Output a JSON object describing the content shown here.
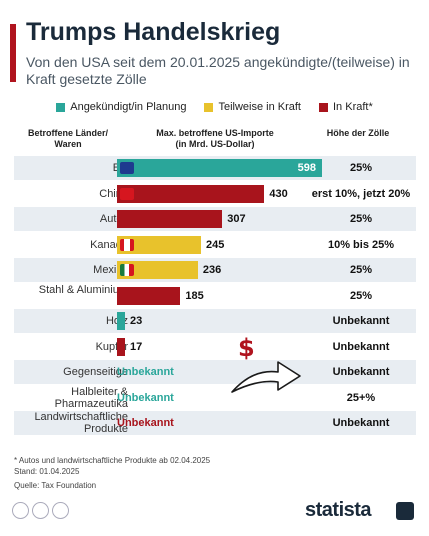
{
  "title": "Trumps Handelskrieg",
  "subtitle": "Von den USA seit dem 20.01.2025 angekündigte/(teilweise) in Kraft gesetzte Zölle",
  "legend": [
    {
      "label": "Angekündigt/in Planung",
      "color": "#2aa69a"
    },
    {
      "label": "Teilweise in Kraft",
      "color": "#e8c22c"
    },
    {
      "label": "In Kraft*",
      "color": "#a8141c"
    }
  ],
  "columns": {
    "col1": "Betroffene Länder/ Waren",
    "col2": "Max. betroffene US-Importe (in Mrd. US-Dollar)",
    "col3": "Höhe der Zölle"
  },
  "chart_data": {
    "type": "bar",
    "categories": [
      "EU",
      "China",
      "Autos",
      "Kanada",
      "Mexiko",
      "Stahl & Aluminium",
      "Holz",
      "Kupfer",
      "Gegenseitige",
      "Halbleiter & Pharmazeutika",
      "Landwirtschaftliche Produkte"
    ],
    "values": [
      598,
      430,
      307,
      245,
      236,
      185,
      23,
      17,
      null,
      null,
      null
    ],
    "value_labels": [
      "598",
      "430",
      "307",
      "245",
      "236",
      "185",
      "23",
      "17",
      "Unbekannt",
      "Unbekannt",
      "Unbekannt"
    ],
    "status": [
      "Angekündigt/in Planung",
      "In Kraft*",
      "In Kraft*",
      "Teilweise in Kraft",
      "Teilweise in Kraft",
      "In Kraft*",
      "Angekündigt/in Planung",
      "In Kraft*",
      "Angekündigt/in Planung",
      "Angekündigt/in Planung",
      "In Kraft*"
    ],
    "tariffs": [
      "25%",
      "erst 10%, jetzt 20%",
      "25%",
      "10% bis 25%",
      "25%",
      "25%",
      "Unbekannt",
      "Unbekannt",
      "Unbekannt",
      "25+%",
      "Unbekannt"
    ],
    "flags": [
      "eu-flag-icon",
      "china-flag-icon",
      null,
      "canada-flag-icon",
      "mexico-flag-icon",
      null,
      null,
      null,
      null,
      null,
      null
    ],
    "xlim": [
      0,
      650
    ]
  },
  "footnote": {
    "line1": "* Autos und landwirtschaftliche Produkte ab 02.04.2025",
    "line2": "Stand: 01.04.2025",
    "line3": "Quelle: Tax Foundation"
  },
  "brand": "statista",
  "colors": {
    "teal": "#2aa69a",
    "yellow": "#e8c22c",
    "red": "#a8141c",
    "accent": "#b0141e"
  }
}
